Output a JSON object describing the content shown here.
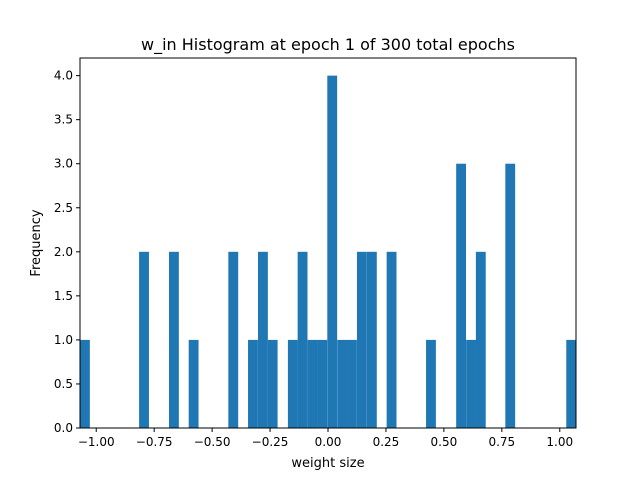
{
  "chart_data": {
    "type": "bar",
    "title": "w_in Histogram at epoch 1 of 300 total epochs",
    "xlabel": "weight size",
    "ylabel": "Frequency",
    "xlim": [
      -1.07,
      1.07
    ],
    "ylim": [
      0,
      4.2
    ],
    "grid": false,
    "bar_color": "#1f77b4",
    "bin_width": 0.0425,
    "x_ticks": [
      -1.0,
      -0.75,
      -0.5,
      -0.25,
      0.0,
      0.25,
      0.5,
      0.75,
      1.0
    ],
    "x_tick_labels": [
      "−1.00",
      "−0.75",
      "−0.50",
      "−0.25",
      "0.00",
      "0.25",
      "0.50",
      "0.75",
      "1.00"
    ],
    "y_ticks": [
      0.0,
      0.5,
      1.0,
      1.5,
      2.0,
      2.5,
      3.0,
      3.5,
      4.0
    ],
    "y_tick_labels": [
      "0.0",
      "0.5",
      "1.0",
      "1.5",
      "2.0",
      "2.5",
      "3.0",
      "3.5",
      "4.0"
    ],
    "bins": [
      {
        "x": -1.07,
        "count": 1
      },
      {
        "x": -0.815,
        "count": 2
      },
      {
        "x": -0.686,
        "count": 2
      },
      {
        "x": -0.601,
        "count": 1
      },
      {
        "x": -0.43,
        "count": 2
      },
      {
        "x": -0.345,
        "count": 1
      },
      {
        "x": -0.302,
        "count": 2
      },
      {
        "x": -0.26,
        "count": 1
      },
      {
        "x": -0.173,
        "count": 1
      },
      {
        "x": -0.131,
        "count": 2
      },
      {
        "x": -0.088,
        "count": 1
      },
      {
        "x": -0.046,
        "count": 1
      },
      {
        "x": -0.003,
        "count": 4
      },
      {
        "x": 0.04,
        "count": 1
      },
      {
        "x": 0.082,
        "count": 1
      },
      {
        "x": 0.125,
        "count": 2
      },
      {
        "x": 0.168,
        "count": 2
      },
      {
        "x": 0.253,
        "count": 2
      },
      {
        "x": 0.423,
        "count": 1
      },
      {
        "x": 0.553,
        "count": 3
      },
      {
        "x": 0.596,
        "count": 1
      },
      {
        "x": 0.638,
        "count": 2
      },
      {
        "x": 0.765,
        "count": 3
      },
      {
        "x": 1.028,
        "count": 1
      }
    ]
  }
}
